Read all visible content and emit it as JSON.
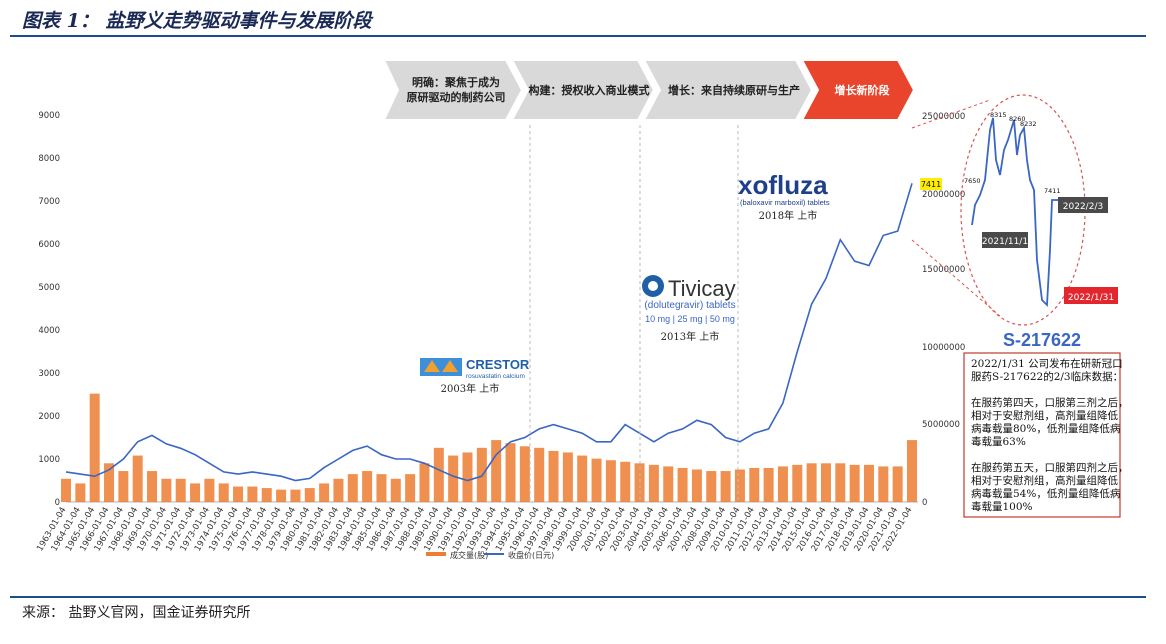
{
  "header": {
    "title": "图表 1： 盐野义走势驱动事件与发展阶段"
  },
  "footer": {
    "source": "来源： 盐野义官网，国金证券研究所"
  },
  "phases": [
    {
      "line1": "明确：聚焦于成为",
      "line2": "原研驱动的制药公司"
    },
    {
      "line1": "构建：授权收入商业模式",
      "line2": ""
    },
    {
      "line1": "增长：来自持续原研与生产",
      "line2": ""
    },
    {
      "line1": "增长新阶段",
      "line2": ""
    }
  ],
  "events": [
    {
      "brand": "CRESTOR",
      "sub": "rosuvastatin calcium",
      "caption": "2003年 上市"
    },
    {
      "brand": "Tivicay",
      "sub": "(dolutegravir) tablets",
      "sub2": "10 mg | 25 mg | 50 mg",
      "caption": "2013年 上市"
    },
    {
      "brand": "xofluza",
      "sub": "(baloxavir marboxil) tablets",
      "caption": "2018年 上市"
    }
  ],
  "inset": {
    "labels": [
      "7411",
      "8315",
      "8260",
      "8232",
      "7650",
      "7411"
    ],
    "date_labels": [
      "2021/11/1",
      "2022/2/3",
      "2022/1/31"
    ],
    "price_tag": "7411",
    "right_axis": [
      "25000000",
      "20000000",
      "15000000",
      "10000000",
      "5000000",
      "0"
    ]
  },
  "callout": {
    "heading": "S-217622",
    "lines": [
      "2022/1/31 公司发布在研新冠口",
      "服药S-217622的2/3临床数据：",
      "",
      "在服药第四天，口服第三剂之后，",
      "相对于安慰剂组，高剂量组降低",
      "病毒载量80%，低剂量组降低病",
      "毒载量63%",
      "",
      "在服药第五天，口服第四剂之后，",
      "相对于安慰剂组，高剂量组降低",
      "病毒载量54%，低剂量组降低病",
      "毒载量100%"
    ]
  },
  "colors": {
    "price": "#3a66c4",
    "volume": "#ed7d31",
    "phase_gray": "#d9d9d9",
    "phase_red": "#e8452c",
    "inset_ring": "#d9534f",
    "red_tag": "#e3262d",
    "dark_tag": "#4a4a4a",
    "yellow_tag": "#ffee00"
  },
  "chart_data": {
    "type": "line",
    "title": "",
    "xlabel": "",
    "ylabel": "",
    "ylim": [
      0,
      9000
    ],
    "y2lim": [
      0,
      25000000
    ],
    "yticks": [
      "9000",
      "8000",
      "7000",
      "6000",
      "5000",
      "4000",
      "3000",
      "2000",
      "1000",
      "0"
    ],
    "x_tick_labels": [
      "1963-01-04",
      "1964-01-04",
      "1965-01-04",
      "1966-01-04",
      "1967-01-04",
      "1968-01-04",
      "1969-01-04",
      "1970-01-04",
      "1971-01-04",
      "1972-01-04",
      "1973-01-04",
      "1974-01-04",
      "1975-01-04",
      "1976-01-04",
      "1977-01-04",
      "1978-01-04",
      "1979-01-04",
      "1980-01-04",
      "1981-01-04",
      "1982-01-04",
      "1983-01-04",
      "1984-01-04",
      "1985-01-04",
      "1986-01-04",
      "1987-01-04",
      "1988-01-04",
      "1989-01-04",
      "1990-01-04",
      "1991-01-04",
      "1992-01-04",
      "1993-01-04",
      "1994-01-04",
      "1995-01-04",
      "1996-01-04",
      "1997-01-04",
      "1998-01-04",
      "1999-01-04",
      "2000-01-04",
      "2001-01-04",
      "2002-01-04",
      "2003-01-04",
      "2004-01-04",
      "2005-01-04",
      "2006-01-04",
      "2007-01-04",
      "2008-01-04",
      "2009-01-04",
      "2010-01-04",
      "2011-01-04",
      "2012-01-04",
      "2013-01-04",
      "2014-01-04",
      "2015-01-04",
      "2016-01-04",
      "2017-01-04",
      "2018-01-04",
      "2019-01-04",
      "2020-01-04",
      "2021-01-04",
      "2022-01-04"
    ],
    "x_tick_labels_visible_odd": [
      "1963-01-04",
      "1964-01-04",
      "1965-01-04",
      "1966-01-04",
      "1967-01-04",
      "1968-01-04",
      "1969-01-04",
      "1970-01-04",
      "1971-01-04",
      "1972-01-04",
      "1973-01-04",
      "1974-01-04",
      "1975-01-04",
      "1976-01-04",
      "1977-01-04",
      "1978-01-04",
      "1979-01-04",
      "1980-01-04",
      "1981-01-04",
      "1982-01-04",
      "1983-01-04",
      "1984-01-04",
      "1985-01-04",
      "1986-01-04",
      "1987-01-04",
      "1988-01-04",
      "1989-01-04",
      "1990-01-04",
      "1991-01-04",
      "1992-01-04",
      "1993-01-04",
      "1994-01-04",
      "1995-01-04",
      "1996-01-04",
      "1997-01-04",
      "1998-01-04",
      "1999-01-04",
      "2000-01-04",
      "2001-01-04",
      "2002-01-04",
      "2003-01-04",
      "2004-01-04",
      "2005-01-04",
      "2006-01-04",
      "2007-01-04",
      "2008-01-04",
      "2009-01-04",
      "2010-01-04",
      "2011-01-04",
      "2012-01-04",
      "2013-01-04",
      "2014-01-04",
      "2015-01-04",
      "2016-01-04",
      "2017-01-04",
      "2018-01-04",
      "2019-01-04",
      "2020-01-04",
      "2021-01-04",
      "2022-01-04"
    ],
    "series": [
      {
        "name": "收盘价(日元)",
        "x": [
          1963,
          1964,
          1965,
          1966,
          1967,
          1968,
          1969,
          1970,
          1971,
          1972,
          1973,
          1974,
          1975,
          1976,
          1977,
          1978,
          1979,
          1980,
          1981,
          1982,
          1983,
          1984,
          1985,
          1986,
          1987,
          1988,
          1989,
          1990,
          1991,
          1992,
          1993,
          1994,
          1995,
          1996,
          1997,
          1998,
          1999,
          2000,
          2001,
          2002,
          2003,
          2004,
          2005,
          2006,
          2007,
          2008,
          2009,
          2010,
          2011,
          2012,
          2013,
          2014,
          2015,
          2016,
          2017,
          2018,
          2019,
          2020,
          2021,
          2022
        ],
        "values": [
          700,
          650,
          600,
          750,
          1000,
          1400,
          1550,
          1350,
          1250,
          1100,
          900,
          700,
          650,
          700,
          650,
          600,
          500,
          550,
          800,
          1000,
          1200,
          1300,
          1100,
          1000,
          1000,
          900,
          750,
          600,
          500,
          600,
          1100,
          1400,
          1500,
          1700,
          1800,
          1700,
          1600,
          1400,
          1400,
          1800,
          1600,
          1400,
          1600,
          1700,
          1900,
          1800,
          1500,
          1400,
          1600,
          1700,
          2300,
          3500,
          4600,
          5200,
          6100,
          5600,
          5500,
          6200,
          6300,
          7411
        ]
      },
      {
        "name": "成交量(股)",
        "x": [
          1963,
          1964,
          1965,
          1966,
          1967,
          1968,
          1969,
          1970,
          1971,
          1972,
          1973,
          1974,
          1975,
          1976,
          1977,
          1978,
          1979,
          1980,
          1981,
          1982,
          1983,
          1984,
          1985,
          1986,
          1987,
          1988,
          1989,
          1990,
          1991,
          1992,
          1993,
          1994,
          1995,
          1996,
          1997,
          1998,
          1999,
          2000,
          2001,
          2002,
          2003,
          2004,
          2005,
          2006,
          2007,
          2008,
          2009,
          2010,
          2011,
          2012,
          2013,
          2014,
          2015,
          2016,
          2017,
          2018,
          2019,
          2020,
          2021,
          2022
        ],
        "values": [
          1500000,
          1200000,
          7000000,
          2500000,
          2000000,
          3000000,
          2000000,
          1500000,
          1500000,
          1200000,
          1500000,
          1200000,
          1000000,
          1000000,
          900000,
          800000,
          800000,
          900000,
          1200000,
          1500000,
          1800000,
          2000000,
          1800000,
          1500000,
          1800000,
          2500000,
          3500000,
          3000000,
          3200000,
          3500000,
          4000000,
          3800000,
          3600000,
          3500000,
          3300000,
          3200000,
          3000000,
          2800000,
          2700000,
          2600000,
          2500000,
          2400000,
          2300000,
          2200000,
          2100000,
          2000000,
          2000000,
          2100000,
          2200000,
          2200000,
          2300000,
          2400000,
          2500000,
          2500000,
          2500000,
          2400000,
          2400000,
          2300000,
          2300000,
          4000000
        ]
      }
    ],
    "legend": {
      "position": "bottom",
      "entries": [
        "成交量(股)",
        "收盘价(日元)"
      ]
    }
  }
}
